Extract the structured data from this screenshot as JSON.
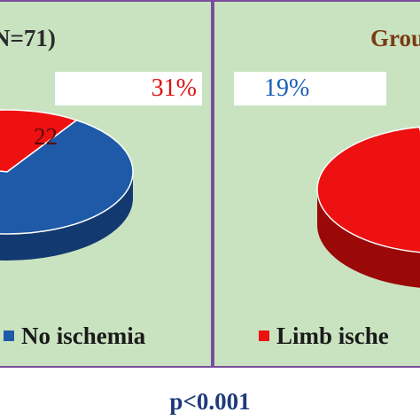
{
  "pvalue": "p<0.001",
  "chart_data": [
    {
      "type": "pie",
      "title": "N=71)",
      "slices": [
        {
          "label": "Limb ischemia",
          "value": 22,
          "percent": 31,
          "color": "#ee1111",
          "shade": "#9a0808"
        },
        {
          "label": "No ischemia",
          "value": 49,
          "percent": 69,
          "color": "#1f5aa8",
          "shade": "#123a70"
        }
      ],
      "data_label": "22",
      "percent_label": "31%",
      "legend": [
        {
          "label": "No ischemia",
          "color": "#1f5aa8"
        }
      ]
    },
    {
      "type": "pie",
      "title": "Grou",
      "slices": [
        {
          "label": "No ischemia",
          "percent": 19,
          "color": "#1f5aa8",
          "shade": "#123a70"
        },
        {
          "label": "Limb ischemia",
          "percent": 81,
          "color": "#ee1111",
          "shade": "#9a0808"
        }
      ],
      "percent_label": "19%",
      "legend": [
        {
          "label": "Limb ische",
          "color": "#ee1111"
        }
      ]
    }
  ]
}
